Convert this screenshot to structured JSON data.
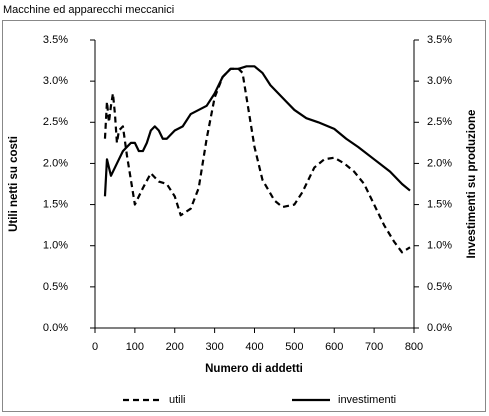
{
  "chart_data": {
    "type": "line",
    "title": "Macchine ed apparecchi meccanici",
    "x_label": "Numero di addetti",
    "y_label": "Utili netti su costi",
    "y2_label": "Investimenti su produzione",
    "xlim": [
      0,
      800
    ],
    "xticks": [
      0,
      100,
      200,
      300,
      400,
      500,
      600,
      700,
      800
    ],
    "ylim": [
      0,
      3.5
    ],
    "yticks": [
      {
        "value": 0,
        "label": "0.0%"
      },
      {
        "value": 0.5,
        "label": "0.5%"
      },
      {
        "value": 1,
        "label": "1.0%"
      },
      {
        "value": 1.5,
        "label": "1.5%"
      },
      {
        "value": 2,
        "label": "2.0%"
      },
      {
        "value": 2.5,
        "label": "2.5%"
      },
      {
        "value": 3,
        "label": "3.0%"
      },
      {
        "value": 3.5,
        "label": "3.5%"
      }
    ],
    "y2lim": [
      0,
      3.5
    ],
    "y2ticks": [
      {
        "value": 0,
        "label": "0.0%"
      },
      {
        "value": 0.5,
        "label": "0.5%"
      },
      {
        "value": 1,
        "label": "1.0%"
      },
      {
        "value": 1.5,
        "label": "1.5%"
      },
      {
        "value": 2,
        "label": "2.0%"
      },
      {
        "value": 2.5,
        "label": "2.5%"
      },
      {
        "value": 3,
        "label": "3.0%"
      },
      {
        "value": 3.5,
        "label": "3.5%"
      }
    ],
    "series": [
      {
        "name": "utili",
        "color": "#000000",
        "style": "dashed",
        "x": [
          25,
          30,
          35,
          40,
          45,
          50,
          55,
          60,
          70,
          80,
          100,
          120,
          140,
          160,
          180,
          200,
          215,
          240,
          260,
          280,
          300,
          320,
          340,
          360,
          370,
          400,
          420,
          450,
          470,
          500,
          520,
          550,
          575,
          600,
          625,
          650,
          675,
          700,
          725,
          750,
          770,
          790
        ],
        "values": [
          2.3,
          2.75,
          2.5,
          2.7,
          2.85,
          2.6,
          2.25,
          2.4,
          2.45,
          2.1,
          1.5,
          1.7,
          1.88,
          1.78,
          1.75,
          1.6,
          1.37,
          1.45,
          1.7,
          2.3,
          2.8,
          3.05,
          3.15,
          3.15,
          3.1,
          2.2,
          1.8,
          1.55,
          1.47,
          1.5,
          1.65,
          1.95,
          2.05,
          2.07,
          2.0,
          1.9,
          1.75,
          1.5,
          1.25,
          1.05,
          0.92,
          0.98
        ]
      },
      {
        "name": "investimenti",
        "color": "#000000",
        "style": "solid",
        "axis": "y2",
        "x": [
          25,
          30,
          35,
          40,
          50,
          60,
          70,
          80,
          90,
          100,
          110,
          120,
          130,
          140,
          150,
          160,
          170,
          180,
          200,
          220,
          240,
          260,
          280,
          300,
          320,
          340,
          360,
          380,
          400,
          420,
          440,
          460,
          480,
          500,
          530,
          560,
          600,
          630,
          660,
          700,
          740,
          770,
          790
        ],
        "values": [
          1.6,
          2.05,
          1.95,
          1.85,
          1.95,
          2.05,
          2.15,
          2.2,
          2.25,
          2.25,
          2.15,
          2.15,
          2.25,
          2.4,
          2.45,
          2.4,
          2.3,
          2.3,
          2.4,
          2.45,
          2.6,
          2.65,
          2.7,
          2.85,
          3.05,
          3.15,
          3.15,
          3.18,
          3.18,
          3.1,
          2.95,
          2.85,
          2.75,
          2.65,
          2.55,
          2.5,
          2.42,
          2.3,
          2.2,
          2.05,
          1.9,
          1.75,
          1.67
        ]
      }
    ]
  }
}
